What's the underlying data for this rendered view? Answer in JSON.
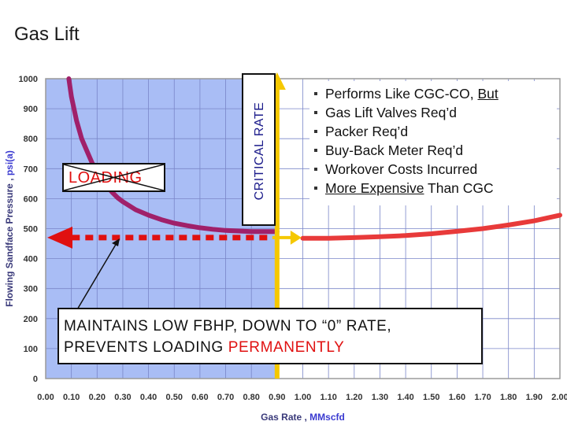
{
  "slide": {
    "title": "Gas Lift"
  },
  "chart_data": {
    "type": "line",
    "xlabel_main": "Gas Rate , ",
    "xlabel_unit": "MMscfd",
    "ylabel_main": "Flowing Sandface Pressure , ",
    "ylabel_unit": "psi(a)",
    "xlim": [
      0,
      2.0
    ],
    "ylim": [
      0,
      1000
    ],
    "x_ticks": [
      "0.00",
      "0.10",
      "0.20",
      "0.30",
      "0.40",
      "0.50",
      "0.60",
      "0.70",
      "0.80",
      "0.90",
      "1.00",
      "1.10",
      "1.20",
      "1.30",
      "1.40",
      "1.50",
      "1.60",
      "1.70",
      "1.80",
      "1.90",
      "2.00"
    ],
    "y_ticks": [
      "0",
      "100",
      "200",
      "300",
      "400",
      "500",
      "600",
      "700",
      "800",
      "900",
      "1000"
    ],
    "grid": true,
    "shaded_region_x": [
      0,
      0.9
    ],
    "critical_rate_x": 0.9,
    "series": [
      {
        "color": "#a0206a",
        "x": [
          0.09,
          0.1,
          0.12,
          0.14,
          0.16,
          0.18,
          0.2,
          0.22,
          0.24,
          0.26,
          0.28,
          0.3,
          0.35,
          0.4,
          0.45,
          0.5,
          0.55,
          0.6,
          0.65,
          0.7,
          0.75,
          0.8,
          0.85,
          0.9
        ],
        "y": [
          1000,
          940,
          860,
          800,
          760,
          720,
          690,
          660,
          640,
          620,
          603,
          590,
          563,
          545,
          530,
          518,
          510,
          503,
          498,
          494,
          492,
          490,
          490,
          490
        ]
      },
      {
        "color": "#e83a3a",
        "x": [
          1.0,
          1.1,
          1.2,
          1.3,
          1.4,
          1.5,
          1.6,
          1.7,
          1.8,
          1.9,
          2.0
        ],
        "y": [
          468,
          468,
          470,
          473,
          477,
          483,
          491,
          500,
          512,
          526,
          545
        ]
      }
    ],
    "gas_lift_pressure": 470
  },
  "bullets": [
    {
      "parts": [
        {
          "text": "Performs Like CGC-CO, ",
          "underline": false
        },
        {
          "text": "But",
          "underline": true
        }
      ]
    },
    {
      "parts": [
        {
          "text": "Gas Lift Valves Req’d",
          "underline": false
        }
      ]
    },
    {
      "parts": [
        {
          "text": "Packer Req’d",
          "underline": false
        }
      ]
    },
    {
      "parts": [
        {
          "text": "Buy-Back Meter Req’d",
          "underline": false
        }
      ]
    },
    {
      "parts": [
        {
          "text": "Workover Costs Incurred",
          "underline": false
        }
      ]
    },
    {
      "parts": [
        {
          "text": "More Expensive",
          "underline": true
        },
        {
          "text": " Than CGC",
          "underline": false
        }
      ]
    }
  ],
  "annotations": {
    "loading": "LOADING",
    "critical_rate": "CRITICAL RATE",
    "callout_line1": "MAINTAINS LOW FBHP, DOWN TO “0” RATE,",
    "callout_line2_prefix": "PREVENTS LOADING ",
    "callout_line2_emph": "PERMANENTLY"
  },
  "colors": {
    "shade": "#a9bdf5",
    "grid": "#7a86c8",
    "loading_curve": "#a0206a",
    "gaslift_curve": "#e83a3a",
    "dotted_arrow": "#e01010",
    "critical_arrow": "#f5c800",
    "emphasis": "#e01010"
  }
}
